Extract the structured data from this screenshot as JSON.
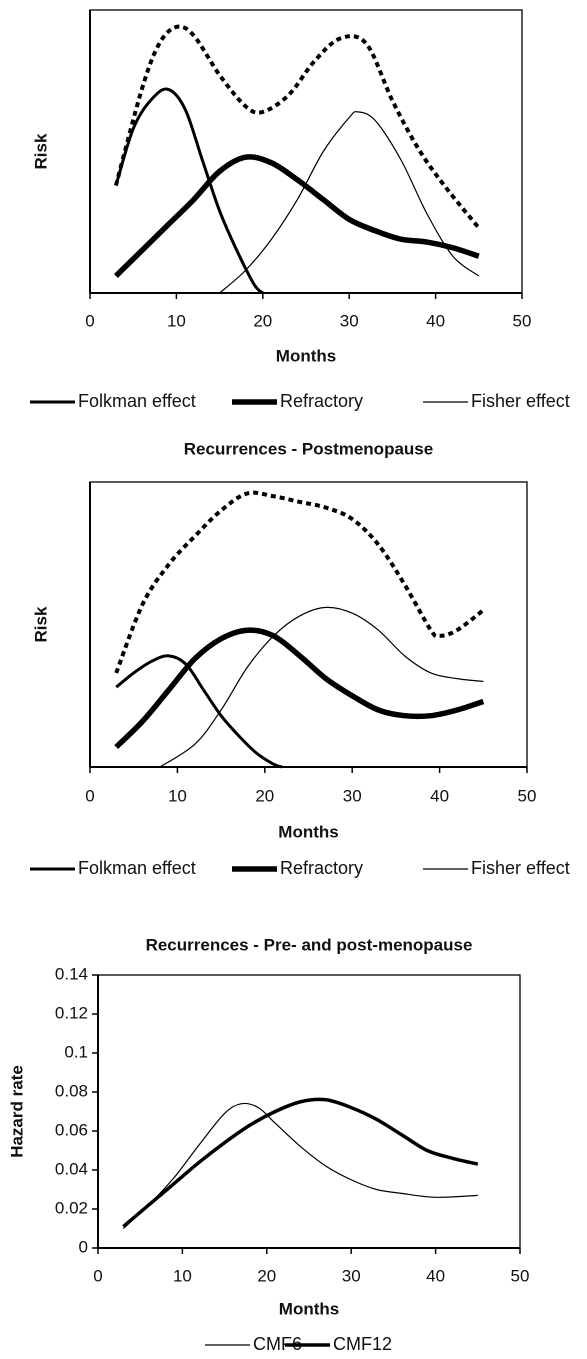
{
  "chart_data": [
    {
      "type": "line",
      "xlabel": "Months",
      "ylabel": "Risk",
      "xlim": [
        0,
        50
      ],
      "xticks": [
        0,
        10,
        20,
        30,
        40,
        50
      ],
      "ylim": [
        0,
        1
      ],
      "series": [
        {
          "name": "Folkman effect",
          "color": "#000000",
          "line_width": 3,
          "x": [
            3,
            5,
            7,
            9,
            11,
            13,
            15,
            17,
            19,
            20
          ],
          "values": [
            0.38,
            0.58,
            0.68,
            0.72,
            0.65,
            0.47,
            0.29,
            0.15,
            0.03,
            0
          ]
        },
        {
          "name": "Refractory",
          "color": "#000000",
          "line_width": 5.5,
          "x": [
            3,
            6,
            9,
            12,
            15,
            18,
            21,
            24,
            27,
            30,
            33,
            36,
            39,
            42,
            45
          ],
          "values": [
            0.06,
            0.15,
            0.24,
            0.33,
            0.43,
            0.48,
            0.46,
            0.4,
            0.33,
            0.26,
            0.22,
            0.19,
            0.18,
            0.16,
            0.13
          ]
        },
        {
          "name": "Fisher effect",
          "color": "#000000",
          "line_width": 1.2,
          "x": [
            15,
            18,
            21,
            24,
            27,
            30,
            31,
            33,
            36,
            39,
            42,
            45
          ],
          "values": [
            0,
            0.08,
            0.19,
            0.33,
            0.5,
            0.62,
            0.64,
            0.61,
            0.47,
            0.28,
            0.13,
            0.06
          ]
        },
        {
          "color": "#000000",
          "line_width": 4,
          "dashed": true,
          "x": [
            3,
            6,
            8,
            10,
            12,
            15,
            18,
            20,
            23,
            26,
            29,
            32,
            35,
            38,
            41,
            45
          ],
          "values": [
            0.38,
            0.72,
            0.88,
            0.94,
            0.91,
            0.77,
            0.66,
            0.64,
            0.7,
            0.82,
            0.9,
            0.88,
            0.68,
            0.51,
            0.38,
            0.23
          ]
        }
      ]
    },
    {
      "type": "line",
      "title": "Recurrences - Postmenopause",
      "xlabel": "Months",
      "ylabel": "Risk",
      "xlim": [
        0,
        50
      ],
      "xticks": [
        0,
        10,
        20,
        30,
        40,
        50
      ],
      "ylim": [
        0,
        1
      ],
      "series": [
        {
          "name": "Folkman effect",
          "color": "#000000",
          "line_width": 3,
          "x": [
            3,
            5,
            7,
            9,
            11,
            13,
            15,
            17,
            19,
            21,
            22
          ],
          "values": [
            0.28,
            0.33,
            0.37,
            0.39,
            0.36,
            0.27,
            0.18,
            0.11,
            0.05,
            0.01,
            0
          ]
        },
        {
          "name": "Refractory",
          "color": "#000000",
          "line_width": 5.5,
          "x": [
            3,
            6,
            9,
            12,
            15,
            18,
            21,
            24,
            27,
            30,
            33,
            36,
            39,
            42,
            45
          ],
          "values": [
            0.07,
            0.16,
            0.27,
            0.38,
            0.45,
            0.48,
            0.46,
            0.39,
            0.31,
            0.25,
            0.2,
            0.18,
            0.18,
            0.2,
            0.23
          ]
        },
        {
          "name": "Fisher effect",
          "color": "#000000",
          "line_width": 1.2,
          "x": [
            8,
            12,
            15,
            18,
            21,
            24,
            27,
            30,
            33,
            36,
            39,
            42,
            45
          ],
          "values": [
            0,
            0.08,
            0.2,
            0.35,
            0.46,
            0.53,
            0.56,
            0.54,
            0.48,
            0.39,
            0.33,
            0.31,
            0.3
          ]
        },
        {
          "color": "#000000",
          "line_width": 4,
          "dashed": true,
          "x": [
            3,
            6,
            9,
            12,
            15,
            18,
            21,
            24,
            27,
            30,
            33,
            36,
            39,
            40,
            42,
            45
          ],
          "values": [
            0.33,
            0.57,
            0.71,
            0.81,
            0.9,
            0.96,
            0.95,
            0.93,
            0.91,
            0.87,
            0.78,
            0.64,
            0.48,
            0.46,
            0.48,
            0.55
          ]
        }
      ]
    },
    {
      "type": "line",
      "title": "Recurrences - Pre- and post-menopause",
      "xlabel": "Months",
      "ylabel": "Hazard rate",
      "xlim": [
        0,
        50
      ],
      "xticks": [
        0,
        10,
        20,
        30,
        40,
        50
      ],
      "ylim": [
        0,
        0.14
      ],
      "yticks": [
        0,
        0.02,
        0.04,
        0.06,
        0.08,
        0.1,
        0.12,
        0.14
      ],
      "series": [
        {
          "name": "CMF6",
          "color": "#000000",
          "line_width": 1.2,
          "x": [
            3,
            6,
            9,
            12,
            15,
            17,
            19,
            21,
            24,
            27,
            30,
            33,
            36,
            40,
            45
          ],
          "values": [
            0.01,
            0.022,
            0.036,
            0.053,
            0.069,
            0.074,
            0.072,
            0.064,
            0.052,
            0.042,
            0.035,
            0.03,
            0.028,
            0.026,
            0.027
          ]
        },
        {
          "name": "CMF12",
          "color": "#000000",
          "line_width": 3.5,
          "x": [
            3,
            6,
            9,
            12,
            15,
            18,
            21,
            24,
            27,
            30,
            33,
            36,
            39,
            42,
            45
          ],
          "values": [
            0.011,
            0.022,
            0.033,
            0.044,
            0.054,
            0.063,
            0.07,
            0.075,
            0.076,
            0.072,
            0.066,
            0.058,
            0.05,
            0.046,
            0.043
          ]
        }
      ]
    }
  ]
}
